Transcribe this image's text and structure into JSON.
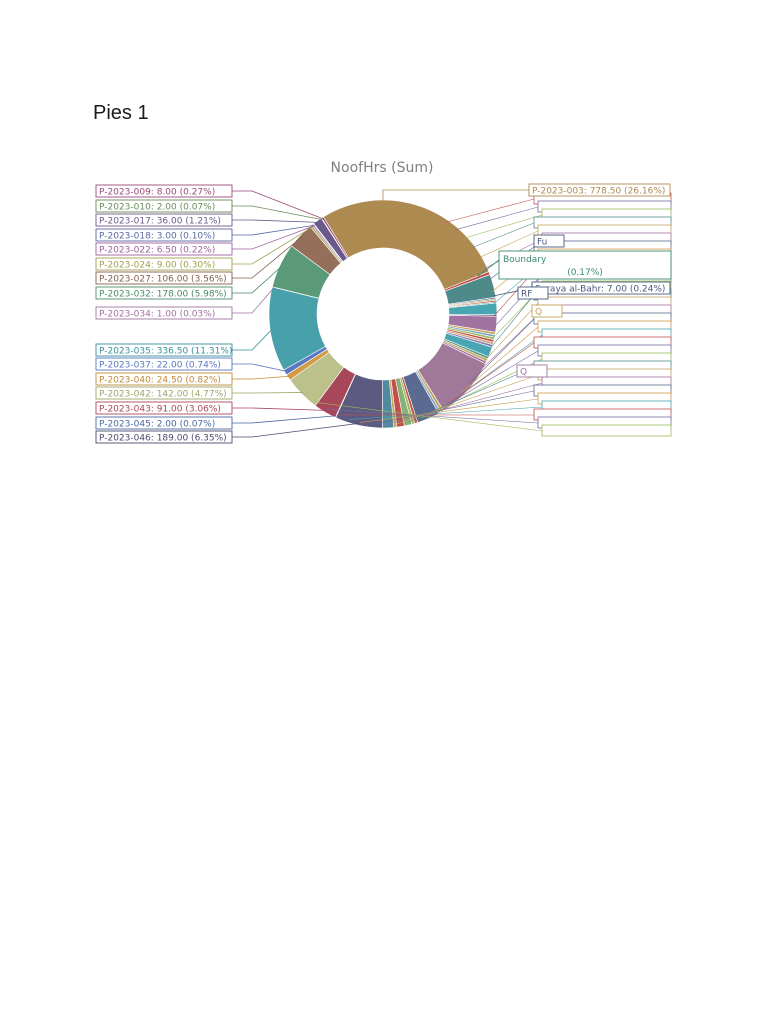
{
  "page": {
    "title": "Pies 1"
  },
  "chart_data": {
    "type": "pie",
    "donut": true,
    "title": "NoofHrs (Sum)",
    "slices": [
      {
        "label": "P-2023-003: 778.50 (26.16%)",
        "value": 778.5,
        "percent": 26.16,
        "color": "#ac8a50"
      },
      {
        "label": "",
        "value": 12,
        "percent": 0.4,
        "color": "#c0504d"
      },
      {
        "label": "",
        "value": 92,
        "percent": 3.1,
        "color": "#4f8a8b"
      },
      {
        "label": "",
        "value": 6,
        "percent": 0.2,
        "color": "#7a6aa0"
      },
      {
        "label": "",
        "value": 6,
        "percent": 0.2,
        "color": "#9bbb59"
      },
      {
        "label": "",
        "value": 6,
        "percent": 0.2,
        "color": "#c0504d"
      },
      {
        "label": "Boundary (0.17%)",
        "value": 5,
        "percent": 0.17,
        "color": "#5b9c8a"
      },
      {
        "label": "",
        "value": 45,
        "percent": 1.5,
        "color": "#48a5b2"
      },
      {
        "label": "Saraya al-Bahr: 7.00 (0.24%)",
        "value": 7,
        "percent": 0.24,
        "color": "#5e6a8c"
      },
      {
        "label": "",
        "value": 63,
        "percent": 2.1,
        "color": "#a073a0"
      },
      {
        "label": "",
        "value": 10,
        "percent": 0.35,
        "color": "#c6a35a"
      },
      {
        "label": "",
        "value": 10,
        "percent": 0.35,
        "color": "#7ca5c4"
      },
      {
        "label": "",
        "value": 10,
        "percent": 0.35,
        "color": "#9bbb59"
      },
      {
        "label": "",
        "value": 10,
        "percent": 0.35,
        "color": "#c0504d"
      },
      {
        "label": "",
        "value": 10,
        "percent": 0.35,
        "color": "#d0a080"
      },
      {
        "label": "",
        "value": 10,
        "percent": 0.35,
        "color": "#8a7ab0"
      },
      {
        "label": "",
        "value": 40,
        "percent": 1.35,
        "color": "#48a5b2"
      },
      {
        "label": "",
        "value": 10,
        "percent": 0.35,
        "color": "#5b9c8a"
      },
      {
        "label": "",
        "value": 10,
        "percent": 0.35,
        "color": "#c6a35a"
      },
      {
        "label": "",
        "value": 10,
        "percent": 0.35,
        "color": "#a073a0"
      },
      {
        "label": "",
        "value": 250,
        "percent": 8.4,
        "color": "#a0789a"
      },
      {
        "label": "",
        "value": 12,
        "percent": 0.4,
        "color": "#c6a35a"
      },
      {
        "label": "",
        "value": 10,
        "percent": 0.35,
        "color": "#7ca5c4"
      },
      {
        "label": "",
        "value": 90,
        "percent": 3.0,
        "color": "#5a6a90"
      },
      {
        "label": "",
        "value": 12,
        "percent": 0.4,
        "color": "#c0504d"
      },
      {
        "label": "",
        "value": 12,
        "percent": 0.4,
        "color": "#9bbb59"
      },
      {
        "label": "",
        "value": 30,
        "percent": 1.0,
        "color": "#8ab07a"
      },
      {
        "label": "",
        "value": 30,
        "percent": 1.0,
        "color": "#c0504d"
      },
      {
        "label": "",
        "value": 12,
        "percent": 0.4,
        "color": "#c6a35a"
      },
      {
        "label": "",
        "value": 45,
        "percent": 1.5,
        "color": "#4f8aa0"
      },
      {
        "label": "P-2023-046: 189.00 (6.35%)",
        "value": 189,
        "percent": 6.35,
        "color": "#5c5a80"
      },
      {
        "label": "P-2023-045: 2.00 (0.07%)",
        "value": 2,
        "percent": 0.07,
        "color": "#4a6aa0"
      },
      {
        "label": "P-2023-043: 91.00 (3.06%)",
        "value": 91,
        "percent": 3.06,
        "color": "#a8475a"
      },
      {
        "label": "P-2023-042: 142.00 (4.77%)",
        "value": 142,
        "percent": 4.77,
        "color": "#bcc08a"
      },
      {
        "label": "P-2023-040: 24.50 (0.82%)",
        "value": 24.5,
        "percent": 0.82,
        "color": "#d09a48"
      },
      {
        "label": "P-2023-037: 22.00 (0.74%)",
        "value": 22,
        "percent": 0.74,
        "color": "#5a78c0"
      },
      {
        "label": "P-2023-035: 336.50 (11.31%)",
        "value": 336.5,
        "percent": 11.31,
        "color": "#48a0aa"
      },
      {
        "label": "P-2023-034: 1.00 (0.03%)",
        "value": 1,
        "percent": 0.03,
        "color": "#a073a0"
      },
      {
        "label": "P-2023-032: 178.00 (5.98%)",
        "value": 178,
        "percent": 5.98,
        "color": "#5a9a78"
      },
      {
        "label": "P-2023-027: 106.00 (3.56%)",
        "value": 106,
        "percent": 3.56,
        "color": "#94705a"
      },
      {
        "label": "P-2023-024: 9.00 (0.30%)",
        "value": 9,
        "percent": 0.3,
        "color": "#b0b060"
      },
      {
        "label": "P-2023-022: 6.50 (0.22%)",
        "value": 6.5,
        "percent": 0.22,
        "color": "#a060a0"
      },
      {
        "label": "P-2023-018: 3.00 (0.10%)",
        "value": 3,
        "percent": 0.1,
        "color": "#5a68a0"
      },
      {
        "label": "P-2023-017: 36.00 (1.21%)",
        "value": 36,
        "percent": 1.21,
        "color": "#6a5a8a"
      },
      {
        "label": "P-2023-010: 2.00 (0.07%)",
        "value": 2,
        "percent": 0.07,
        "color": "#6a8a5a"
      },
      {
        "label": "P-2023-009: 8.00 (0.27%)",
        "value": 8,
        "percent": 0.27,
        "color": "#9a4a7a"
      }
    ],
    "legend": "callouts"
  },
  "labels_left": [
    {
      "text": "P-2023-009: 8.00 (0.27%)",
      "color": "#9a4a7a"
    },
    {
      "text": "P-2023-010: 2.00 (0.07%)",
      "color": "#6a8a5a"
    },
    {
      "text": "P-2023-017: 36.00 (1.21%)",
      "color": "#6a5a8a"
    },
    {
      "text": "P-2023-018: 3.00 (0.10%)",
      "color": "#5a68a0"
    },
    {
      "text": "P-2023-022: 6.50 (0.22%)",
      "color": "#a060a0"
    },
    {
      "text": "P-2023-024: 9.00 (0.30%)",
      "color": "#a0a050"
    },
    {
      "text": "P-2023-027: 106.00 (3.56%)",
      "color": "#84604a"
    },
    {
      "text": "P-2023-032: 178.00 (5.98%)",
      "color": "#4a8a68"
    },
    {
      "text": "P-2023-034: 1.00 (0.03%)",
      "color": "#a073a0"
    },
    {
      "text": "P-2023-035: 336.50 (11.31%)",
      "color": "#3a9099"
    },
    {
      "text": "P-2023-037: 22.00 (0.74%)",
      "color": "#5a78c0"
    },
    {
      "text": "P-2023-040: 24.50 (0.82%)",
      "color": "#c08a38"
    },
    {
      "text": "P-2023-042: 142.00 (4.77%)",
      "color": "#a0a46a"
    },
    {
      "text": "P-2023-043: 91.00 (3.06%)",
      "color": "#a8475a"
    },
    {
      "text": "P-2023-045: 2.00 (0.07%)",
      "color": "#4a6aa0"
    },
    {
      "text": "P-2023-046: 189.00 (6.35%)",
      "color": "#4c4a70"
    }
  ],
  "labels_right": [
    {
      "text": "P-2023-003: 778.50 (26.16%)",
      "color": "#ac8a50"
    },
    {
      "text": "Boundary",
      "color": "#3a8a70"
    },
    {
      "text": "(0.17%)",
      "color": "#3a8a70"
    },
    {
      "text": "Saraya al-Bahr: 7.00 (0.24%)",
      "color": "#4a5a7c"
    },
    {
      "text": "Fu",
      "color": "#4a5a7c"
    },
    {
      "text": "RF",
      "color": "#4a5a7c"
    },
    {
      "text": "Q",
      "color": "#c6a35a"
    },
    {
      "text": "Q",
      "color": "#a073a0"
    }
  ]
}
